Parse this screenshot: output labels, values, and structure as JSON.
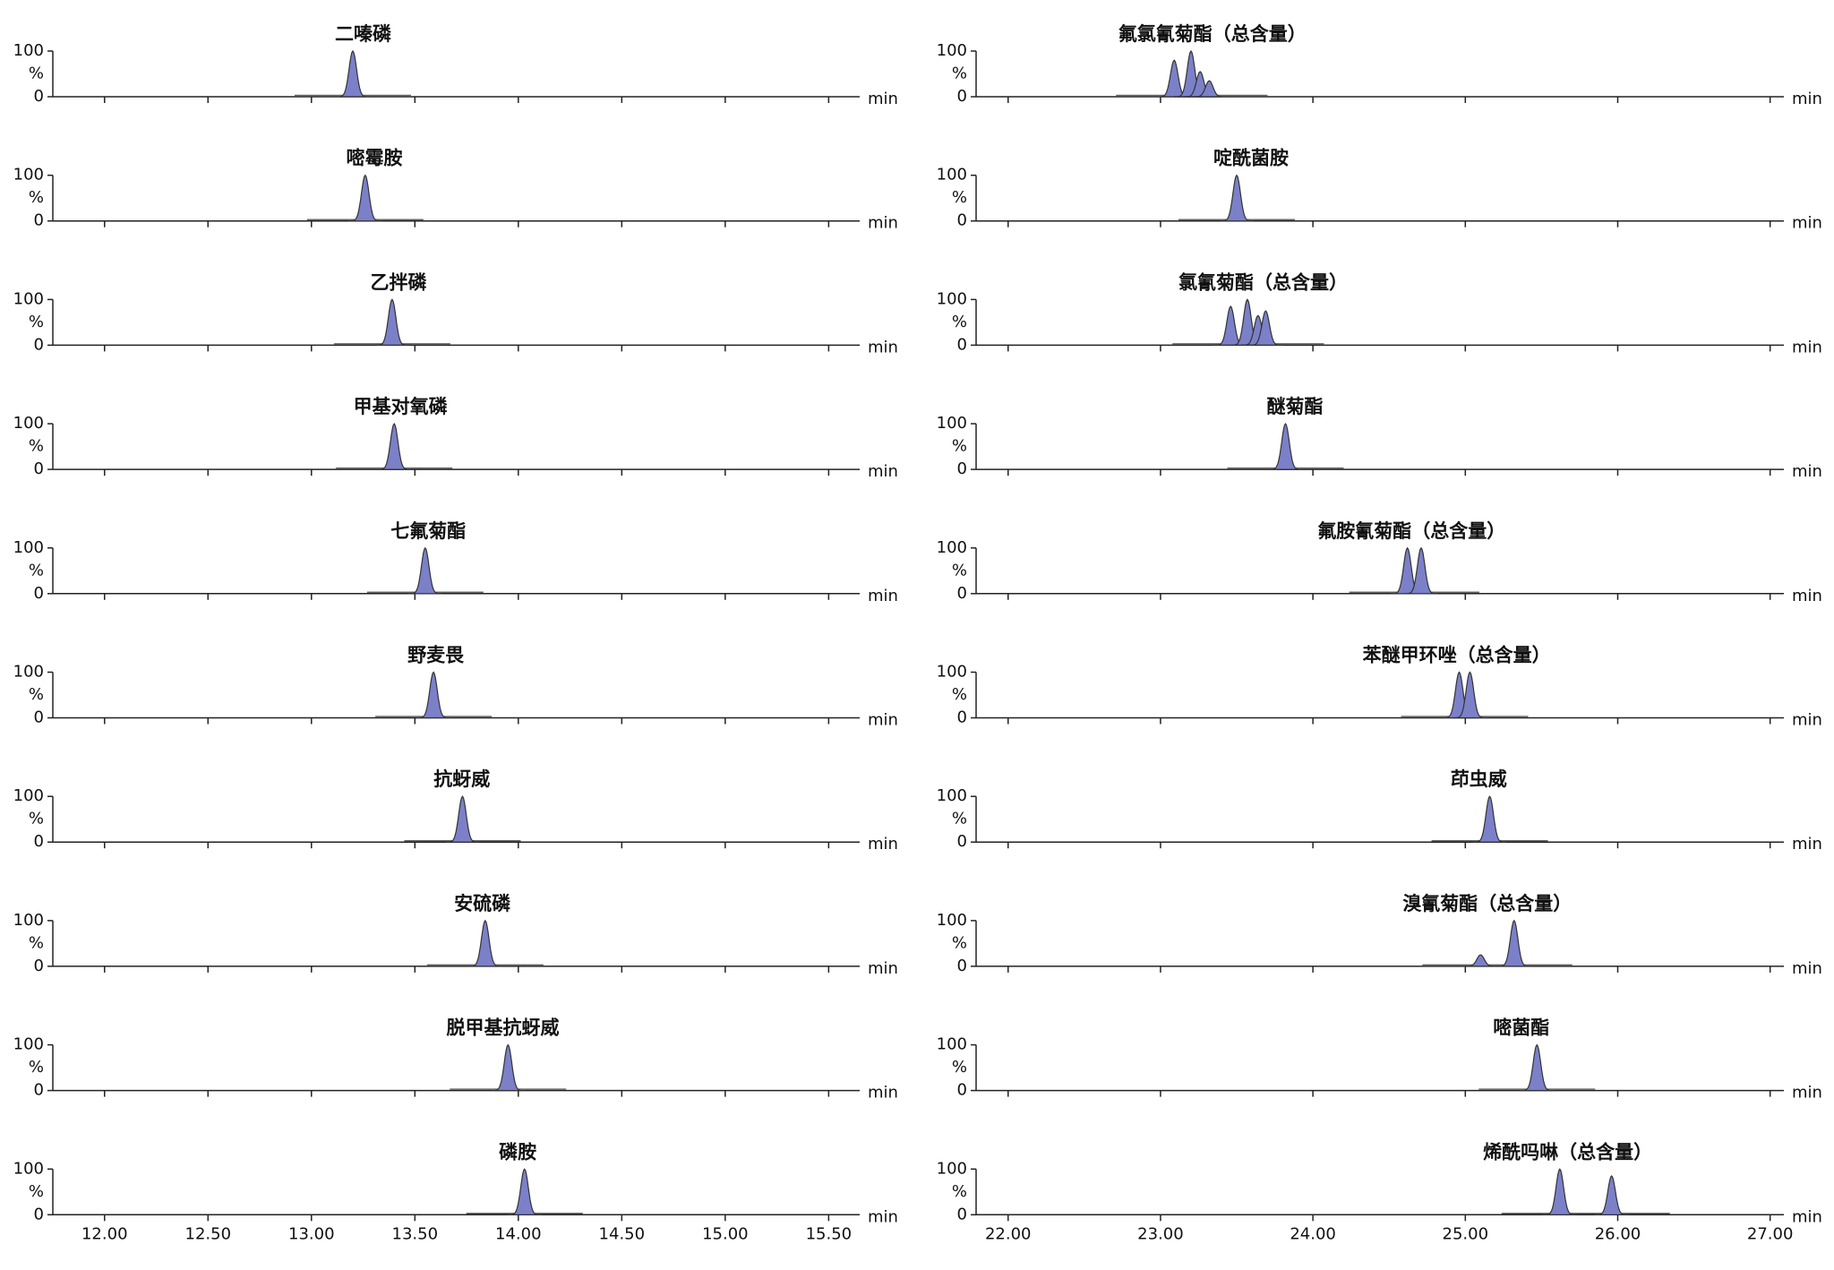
{
  "chart_data": [
    {
      "type": "area",
      "title": "二嗪磷",
      "x": [
        13.2
      ],
      "values": [
        100
      ],
      "color": "#7b80c8",
      "xlabel": "min",
      "ylabel": "%",
      "xlim": [
        11.75,
        15.65
      ],
      "ylim": [
        0,
        100
      ],
      "yticks": [
        0,
        100
      ],
      "tick_labels": false,
      "xticks": [
        {
          "value": 12,
          "label": "12.00"
        },
        {
          "value": 12.5,
          "label": "12.50"
        },
        {
          "value": 13,
          "label": "13.00"
        },
        {
          "value": 13.5,
          "label": "13.50"
        },
        {
          "value": 14,
          "label": "14.00"
        },
        {
          "value": 14.5,
          "label": "14.50"
        },
        {
          "value": 15,
          "label": "15.00"
        },
        {
          "value": 15.5,
          "label": "15.50"
        }
      ]
    },
    {
      "type": "area",
      "title": "嘧霉胺",
      "x": [
        13.26
      ],
      "values": [
        100
      ],
      "color": "#7b80c8",
      "xlabel": "min",
      "ylabel": "%",
      "xlim": [
        11.75,
        15.65
      ],
      "ylim": [
        0,
        100
      ],
      "yticks": [
        0,
        100
      ],
      "tick_labels": false,
      "xticks": [
        {
          "value": 12,
          "label": "12.00"
        },
        {
          "value": 12.5,
          "label": "12.50"
        },
        {
          "value": 13,
          "label": "13.00"
        },
        {
          "value": 13.5,
          "label": "13.50"
        },
        {
          "value": 14,
          "label": "14.00"
        },
        {
          "value": 14.5,
          "label": "14.50"
        },
        {
          "value": 15,
          "label": "15.00"
        },
        {
          "value": 15.5,
          "label": "15.50"
        }
      ]
    },
    {
      "type": "area",
      "title": "乙拌磷",
      "x": [
        13.39
      ],
      "values": [
        100
      ],
      "color": "#7b80c8",
      "xlabel": "min",
      "ylabel": "%",
      "xlim": [
        11.75,
        15.65
      ],
      "ylim": [
        0,
        100
      ],
      "yticks": [
        0,
        100
      ],
      "tick_labels": false,
      "xticks": [
        {
          "value": 12,
          "label": "12.00"
        },
        {
          "value": 12.5,
          "label": "12.50"
        },
        {
          "value": 13,
          "label": "13.00"
        },
        {
          "value": 13.5,
          "label": "13.50"
        },
        {
          "value": 14,
          "label": "14.00"
        },
        {
          "value": 14.5,
          "label": "14.50"
        },
        {
          "value": 15,
          "label": "15.00"
        },
        {
          "value": 15.5,
          "label": "15.50"
        }
      ]
    },
    {
      "type": "area",
      "title": "甲基对氧磷",
      "x": [
        13.4
      ],
      "values": [
        100
      ],
      "color": "#7b80c8",
      "xlabel": "min",
      "ylabel": "%",
      "xlim": [
        11.75,
        15.65
      ],
      "ylim": [
        0,
        100
      ],
      "yticks": [
        0,
        100
      ],
      "tick_labels": false,
      "xticks": [
        {
          "value": 12,
          "label": "12.00"
        },
        {
          "value": 12.5,
          "label": "12.50"
        },
        {
          "value": 13,
          "label": "13.00"
        },
        {
          "value": 13.5,
          "label": "13.50"
        },
        {
          "value": 14,
          "label": "14.00"
        },
        {
          "value": 14.5,
          "label": "14.50"
        },
        {
          "value": 15,
          "label": "15.00"
        },
        {
          "value": 15.5,
          "label": "15.50"
        }
      ]
    },
    {
      "type": "area",
      "title": "七氟菊酯",
      "x": [
        13.55
      ],
      "values": [
        100
      ],
      "color": "#7b80c8",
      "xlabel": "min",
      "ylabel": "%",
      "xlim": [
        11.75,
        15.65
      ],
      "ylim": [
        0,
        100
      ],
      "yticks": [
        0,
        100
      ],
      "tick_labels": false,
      "xticks": [
        {
          "value": 12,
          "label": "12.00"
        },
        {
          "value": 12.5,
          "label": "12.50"
        },
        {
          "value": 13,
          "label": "13.00"
        },
        {
          "value": 13.5,
          "label": "13.50"
        },
        {
          "value": 14,
          "label": "14.00"
        },
        {
          "value": 14.5,
          "label": "14.50"
        },
        {
          "value": 15,
          "label": "15.00"
        },
        {
          "value": 15.5,
          "label": "15.50"
        }
      ]
    },
    {
      "type": "area",
      "title": "野麦畏",
      "x": [
        13.59
      ],
      "values": [
        100
      ],
      "color": "#7b80c8",
      "xlabel": "min",
      "ylabel": "%",
      "xlim": [
        11.75,
        15.65
      ],
      "ylim": [
        0,
        100
      ],
      "yticks": [
        0,
        100
      ],
      "tick_labels": false,
      "xticks": [
        {
          "value": 12,
          "label": "12.00"
        },
        {
          "value": 12.5,
          "label": "12.50"
        },
        {
          "value": 13,
          "label": "13.00"
        },
        {
          "value": 13.5,
          "label": "13.50"
        },
        {
          "value": 14,
          "label": "14.00"
        },
        {
          "value": 14.5,
          "label": "14.50"
        },
        {
          "value": 15,
          "label": "15.00"
        },
        {
          "value": 15.5,
          "label": "15.50"
        }
      ]
    },
    {
      "type": "area",
      "title": "抗蚜威",
      "x": [
        13.73
      ],
      "values": [
        100
      ],
      "color": "#7b80c8",
      "xlabel": "min",
      "ylabel": "%",
      "xlim": [
        11.75,
        15.65
      ],
      "ylim": [
        0,
        100
      ],
      "yticks": [
        0,
        100
      ],
      "tick_labels": false,
      "xticks": [
        {
          "value": 12,
          "label": "12.00"
        },
        {
          "value": 12.5,
          "label": "12.50"
        },
        {
          "value": 13,
          "label": "13.00"
        },
        {
          "value": 13.5,
          "label": "13.50"
        },
        {
          "value": 14,
          "label": "14.00"
        },
        {
          "value": 14.5,
          "label": "14.50"
        },
        {
          "value": 15,
          "label": "15.00"
        },
        {
          "value": 15.5,
          "label": "15.50"
        }
      ]
    },
    {
      "type": "area",
      "title": "安硫磷",
      "x": [
        13.84
      ],
      "values": [
        100
      ],
      "color": "#7b80c8",
      "xlabel": "min",
      "ylabel": "%",
      "xlim": [
        11.75,
        15.65
      ],
      "ylim": [
        0,
        100
      ],
      "yticks": [
        0,
        100
      ],
      "tick_labels": false,
      "xticks": [
        {
          "value": 12,
          "label": "12.00"
        },
        {
          "value": 12.5,
          "label": "12.50"
        },
        {
          "value": 13,
          "label": "13.00"
        },
        {
          "value": 13.5,
          "label": "13.50"
        },
        {
          "value": 14,
          "label": "14.00"
        },
        {
          "value": 14.5,
          "label": "14.50"
        },
        {
          "value": 15,
          "label": "15.00"
        },
        {
          "value": 15.5,
          "label": "15.50"
        }
      ]
    },
    {
      "type": "area",
      "title": "脱甲基抗蚜威",
      "x": [
        13.95
      ],
      "values": [
        100
      ],
      "color": "#7b80c8",
      "xlabel": "min",
      "ylabel": "%",
      "xlim": [
        11.75,
        15.65
      ],
      "ylim": [
        0,
        100
      ],
      "yticks": [
        0,
        100
      ],
      "tick_labels": false,
      "xticks": [
        {
          "value": 12,
          "label": "12.00"
        },
        {
          "value": 12.5,
          "label": "12.50"
        },
        {
          "value": 13,
          "label": "13.00"
        },
        {
          "value": 13.5,
          "label": "13.50"
        },
        {
          "value": 14,
          "label": "14.00"
        },
        {
          "value": 14.5,
          "label": "14.50"
        },
        {
          "value": 15,
          "label": "15.00"
        },
        {
          "value": 15.5,
          "label": "15.50"
        }
      ]
    },
    {
      "type": "area",
      "title": "磷胺",
      "x": [
        14.03
      ],
      "values": [
        100
      ],
      "color": "#7b80c8",
      "xlabel": "min",
      "ylabel": "%",
      "xlim": [
        11.75,
        15.65
      ],
      "ylim": [
        0,
        100
      ],
      "yticks": [
        0,
        100
      ],
      "tick_labels": true,
      "xticks": [
        {
          "value": 12,
          "label": "12.00"
        },
        {
          "value": 12.5,
          "label": "12.50"
        },
        {
          "value": 13,
          "label": "13.00"
        },
        {
          "value": 13.5,
          "label": "13.50"
        },
        {
          "value": 14,
          "label": "14.00"
        },
        {
          "value": 14.5,
          "label": "14.50"
        },
        {
          "value": 15,
          "label": "15.00"
        },
        {
          "value": 15.5,
          "label": "15.50"
        }
      ]
    },
    {
      "type": "area",
      "title": "氟氯氰菊酯（总含量）",
      "x": [
        23.09,
        23.2,
        23.26,
        23.32
      ],
      "values": [
        80,
        100,
        55,
        35
      ],
      "color": "#7b80c8",
      "xlabel": "min",
      "ylabel": "%",
      "xlim": [
        21.79,
        27.09
      ],
      "ylim": [
        0,
        100
      ],
      "yticks": [
        0,
        100
      ],
      "tick_labels": false,
      "xticks": [
        {
          "value": 22,
          "label": "22.00"
        },
        {
          "value": 23,
          "label": "23.00"
        },
        {
          "value": 24,
          "label": "24.00"
        },
        {
          "value": 25,
          "label": "25.00"
        },
        {
          "value": 26,
          "label": "26.00"
        },
        {
          "value": 27,
          "label": "27.00"
        }
      ]
    },
    {
      "type": "area",
      "title": "啶酰菌胺",
      "x": [
        23.5
      ],
      "values": [
        100
      ],
      "color": "#7b80c8",
      "xlabel": "min",
      "ylabel": "%",
      "xlim": [
        21.79,
        27.09
      ],
      "ylim": [
        0,
        100
      ],
      "yticks": [
        0,
        100
      ],
      "tick_labels": false,
      "xticks": [
        {
          "value": 22,
          "label": "22.00"
        },
        {
          "value": 23,
          "label": "23.00"
        },
        {
          "value": 24,
          "label": "24.00"
        },
        {
          "value": 25,
          "label": "25.00"
        },
        {
          "value": 26,
          "label": "26.00"
        },
        {
          "value": 27,
          "label": "27.00"
        }
      ]
    },
    {
      "type": "area",
      "title": "氯氰菊酯（总含量）",
      "x": [
        23.46,
        23.57,
        23.64,
        23.69
      ],
      "values": [
        85,
        100,
        65,
        75
      ],
      "color": "#7b80c8",
      "xlabel": "min",
      "ylabel": "%",
      "xlim": [
        21.79,
        27.09
      ],
      "ylim": [
        0,
        100
      ],
      "yticks": [
        0,
        100
      ],
      "tick_labels": false,
      "xticks": [
        {
          "value": 22,
          "label": "22.00"
        },
        {
          "value": 23,
          "label": "23.00"
        },
        {
          "value": 24,
          "label": "24.00"
        },
        {
          "value": 25,
          "label": "25.00"
        },
        {
          "value": 26,
          "label": "26.00"
        },
        {
          "value": 27,
          "label": "27.00"
        }
      ]
    },
    {
      "type": "area",
      "title": "醚菊酯",
      "x": [
        23.82
      ],
      "values": [
        100
      ],
      "color": "#7b80c8",
      "xlabel": "min",
      "ylabel": "%",
      "xlim": [
        21.79,
        27.09
      ],
      "ylim": [
        0,
        100
      ],
      "yticks": [
        0,
        100
      ],
      "tick_labels": false,
      "xticks": [
        {
          "value": 22,
          "label": "22.00"
        },
        {
          "value": 23,
          "label": "23.00"
        },
        {
          "value": 24,
          "label": "24.00"
        },
        {
          "value": 25,
          "label": "25.00"
        },
        {
          "value": 26,
          "label": "26.00"
        },
        {
          "value": 27,
          "label": "27.00"
        }
      ]
    },
    {
      "type": "area",
      "title": "氟胺氰菊酯（总含量）",
      "x": [
        24.62,
        24.71
      ],
      "values": [
        100,
        100
      ],
      "color": "#7b80c8",
      "xlabel": "min",
      "ylabel": "%",
      "xlim": [
        21.79,
        27.09
      ],
      "ylim": [
        0,
        100
      ],
      "yticks": [
        0,
        100
      ],
      "tick_labels": false,
      "xticks": [
        {
          "value": 22,
          "label": "22.00"
        },
        {
          "value": 23,
          "label": "23.00"
        },
        {
          "value": 24,
          "label": "24.00"
        },
        {
          "value": 25,
          "label": "25.00"
        },
        {
          "value": 26,
          "label": "26.00"
        },
        {
          "value": 27,
          "label": "27.00"
        }
      ]
    },
    {
      "type": "area",
      "title": "苯醚甲环唑（总含量）",
      "x": [
        24.96,
        25.03
      ],
      "values": [
        100,
        100
      ],
      "color": "#7b80c8",
      "xlabel": "min",
      "ylabel": "%",
      "xlim": [
        21.79,
        27.09
      ],
      "ylim": [
        0,
        100
      ],
      "yticks": [
        0,
        100
      ],
      "tick_labels": false,
      "xticks": [
        {
          "value": 22,
          "label": "22.00"
        },
        {
          "value": 23,
          "label": "23.00"
        },
        {
          "value": 24,
          "label": "24.00"
        },
        {
          "value": 25,
          "label": "25.00"
        },
        {
          "value": 26,
          "label": "26.00"
        },
        {
          "value": 27,
          "label": "27.00"
        }
      ]
    },
    {
      "type": "area",
      "title": "茚虫威",
      "x": [
        25.16
      ],
      "values": [
        100
      ],
      "color": "#7b80c8",
      "xlabel": "min",
      "ylabel": "%",
      "xlim": [
        21.79,
        27.09
      ],
      "ylim": [
        0,
        100
      ],
      "yticks": [
        0,
        100
      ],
      "tick_labels": false,
      "xticks": [
        {
          "value": 22,
          "label": "22.00"
        },
        {
          "value": 23,
          "label": "23.00"
        },
        {
          "value": 24,
          "label": "24.00"
        },
        {
          "value": 25,
          "label": "25.00"
        },
        {
          "value": 26,
          "label": "26.00"
        },
        {
          "value": 27,
          "label": "27.00"
        }
      ]
    },
    {
      "type": "area",
      "title": "溴氰菊酯（总含量）",
      "x": [
        25.1,
        25.32
      ],
      "values": [
        25,
        100
      ],
      "color": "#7b80c8",
      "xlabel": "min",
      "ylabel": "%",
      "xlim": [
        21.79,
        27.09
      ],
      "ylim": [
        0,
        100
      ],
      "yticks": [
        0,
        100
      ],
      "tick_labels": false,
      "xticks": [
        {
          "value": 22,
          "label": "22.00"
        },
        {
          "value": 23,
          "label": "23.00"
        },
        {
          "value": 24,
          "label": "24.00"
        },
        {
          "value": 25,
          "label": "25.00"
        },
        {
          "value": 26,
          "label": "26.00"
        },
        {
          "value": 27,
          "label": "27.00"
        }
      ]
    },
    {
      "type": "area",
      "title": "嘧菌酯",
      "x": [
        25.47
      ],
      "values": [
        100
      ],
      "color": "#7b80c8",
      "xlabel": "min",
      "ylabel": "%",
      "xlim": [
        21.79,
        27.09
      ],
      "ylim": [
        0,
        100
      ],
      "yticks": [
        0,
        100
      ],
      "tick_labels": false,
      "xticks": [
        {
          "value": 22,
          "label": "22.00"
        },
        {
          "value": 23,
          "label": "23.00"
        },
        {
          "value": 24,
          "label": "24.00"
        },
        {
          "value": 25,
          "label": "25.00"
        },
        {
          "value": 26,
          "label": "26.00"
        },
        {
          "value": 27,
          "label": "27.00"
        }
      ]
    },
    {
      "type": "area",
      "title": "烯酰吗啉（总含量）",
      "x": [
        25.62,
        25.96
      ],
      "values": [
        100,
        85
      ],
      "color": "#7b80c8",
      "xlabel": "min",
      "ylabel": "%",
      "xlim": [
        21.79,
        27.09
      ],
      "ylim": [
        0,
        100
      ],
      "yticks": [
        0,
        100
      ],
      "tick_labels": true,
      "xticks": [
        {
          "value": 22,
          "label": "22.00"
        },
        {
          "value": 23,
          "label": "23.00"
        },
        {
          "value": 24,
          "label": "24.00"
        },
        {
          "value": 25,
          "label": "25.00"
        },
        {
          "value": 26,
          "label": "26.00"
        },
        {
          "value": 27,
          "label": "27.00"
        }
      ]
    }
  ]
}
